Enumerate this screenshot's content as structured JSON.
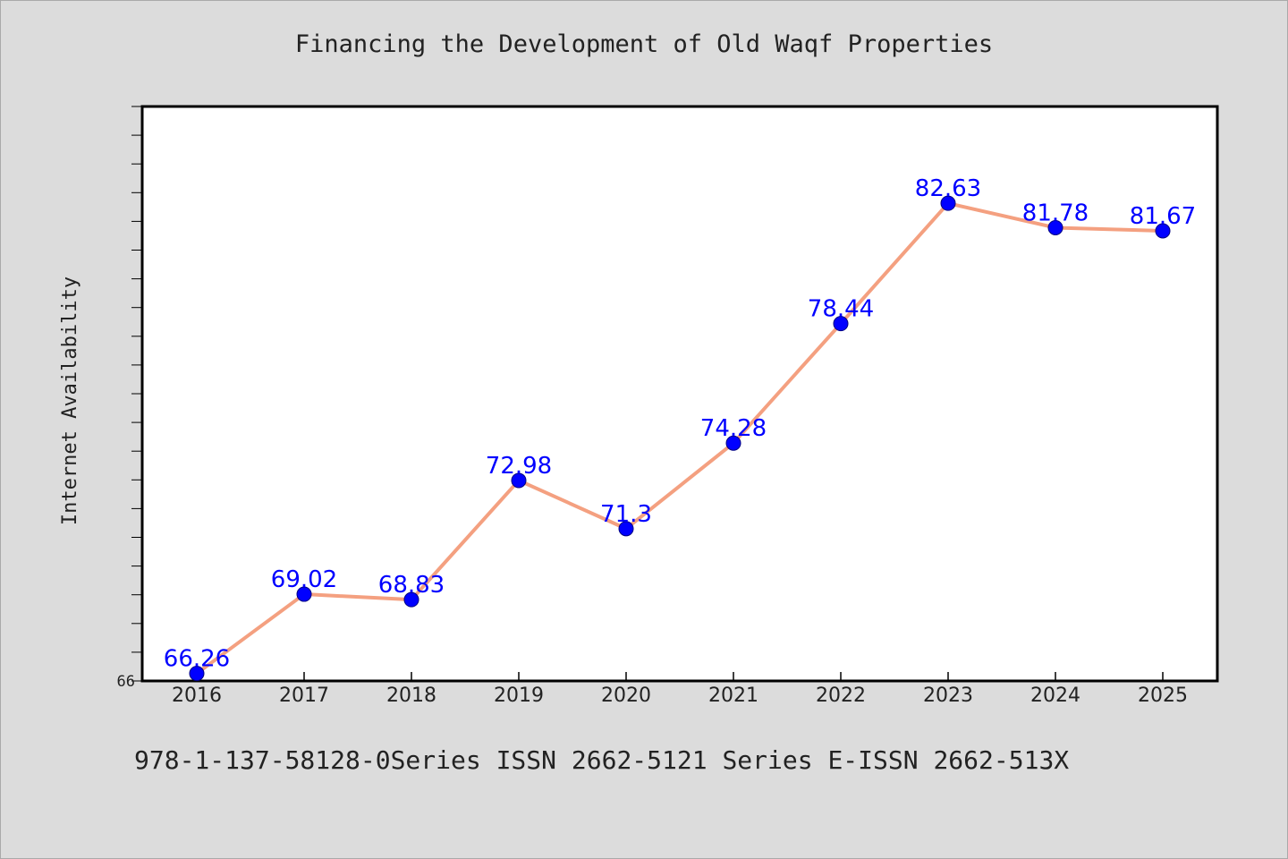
{
  "chart_data": {
    "type": "line",
    "title": "Financing the Development of Old Waqf Properties",
    "ylabel": "Internet Availability",
    "xlabel": "",
    "categories": [
      "2016",
      "2017",
      "2018",
      "2019",
      "2020",
      "2021",
      "2022",
      "2023",
      "2024",
      "2025"
    ],
    "series": [
      {
        "values": [
          66.26,
          69.02,
          68.83,
          72.98,
          71.3,
          74.28,
          78.44,
          82.63,
          81.78,
          81.67
        ],
        "labels": [
          "66.26",
          "69.02",
          "68.83",
          "72.98",
          "71.3",
          "74.28",
          "78.44",
          "82.63",
          "81.78",
          "81.67"
        ],
        "line_color": "#f4a080",
        "marker_color": "#0000ff"
      }
    ],
    "ylim": [
      66,
      86
    ],
    "y_tick_labels": [
      "66"
    ],
    "grid": false,
    "label_color": "#0000ff"
  },
  "footer": {
    "text": "978-1-137-58128-0Series ISSN 2662-5121 Series E-ISSN 2662-513X"
  },
  "colors": {
    "background": "#dcdcdc",
    "plot_background": "#ffffff",
    "axis": "#000000"
  }
}
